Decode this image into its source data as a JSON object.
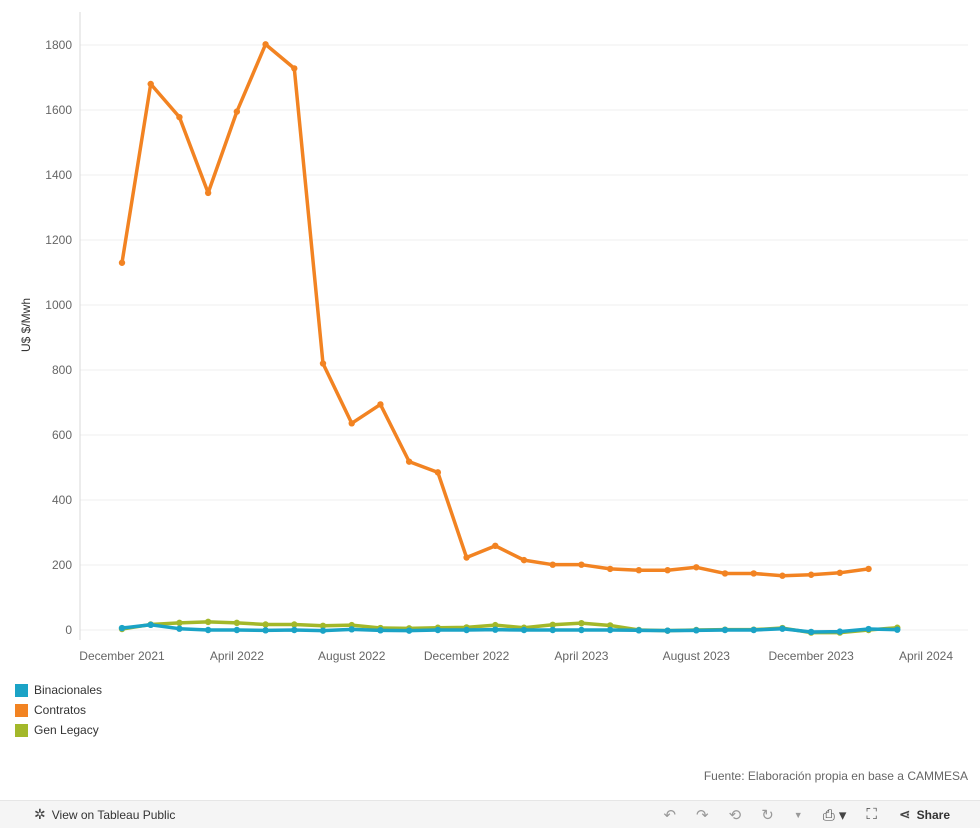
{
  "chart_data": {
    "type": "line",
    "ylabel": "U$ $/Mwh",
    "ylim": [
      -20,
      1900
    ],
    "yticks": [
      0,
      200,
      400,
      600,
      800,
      1000,
      1200,
      1400,
      1600,
      1800
    ],
    "x": [
      "2021-12",
      "2022-01",
      "2022-02",
      "2022-03",
      "2022-04",
      "2022-05",
      "2022-06",
      "2022-07",
      "2022-08",
      "2022-09",
      "2022-10",
      "2022-11",
      "2022-12",
      "2023-01",
      "2023-02",
      "2023-03",
      "2023-04",
      "2023-05",
      "2023-06",
      "2023-07",
      "2023-08",
      "2023-09",
      "2023-10",
      "2023-11",
      "2023-12",
      "2024-01",
      "2024-02",
      "2024-03",
      "2024-04"
    ],
    "xticks": [
      {
        "x": "2021-12",
        "label": "December 2021"
      },
      {
        "x": "2022-04",
        "label": "April 2022"
      },
      {
        "x": "2022-08",
        "label": "August 2022"
      },
      {
        "x": "2022-12",
        "label": "December 2022"
      },
      {
        "x": "2023-04",
        "label": "April 2023"
      },
      {
        "x": "2023-08",
        "label": "August 2023"
      },
      {
        "x": "2023-12",
        "label": "December 2023"
      },
      {
        "x": "2024-04",
        "label": "April 2024"
      }
    ],
    "grid": true,
    "legend": "bottom-left",
    "series": [
      {
        "name": "Gen Legacy",
        "color": "#a3b82a",
        "values": [
          3,
          17,
          22,
          25,
          22,
          17,
          17,
          13,
          15,
          6,
          5,
          7,
          8,
          15,
          7,
          16,
          21,
          14,
          0,
          -2,
          0,
          1,
          1,
          6,
          -8,
          -8,
          0,
          7,
          null
        ]
      },
      {
        "name": "Binacionales",
        "color": "#1ba3c6",
        "values": [
          6,
          16,
          4,
          0,
          0,
          -1,
          0,
          -2,
          2,
          -1,
          -2,
          0,
          0,
          1,
          0,
          0,
          0,
          0,
          -1,
          -2,
          -1,
          0,
          0,
          4,
          -6,
          -5,
          3,
          1,
          null
        ]
      },
      {
        "name": "Contratos",
        "color": "#f28322",
        "values": [
          1130,
          1680,
          1578,
          1345,
          1595,
          1802,
          1728,
          820,
          636,
          694,
          518,
          485,
          223,
          259,
          215,
          201,
          201,
          188,
          184,
          184,
          193,
          174,
          174,
          167,
          170,
          176,
          188,
          null,
          null
        ]
      }
    ],
    "legend_order": [
      "Binacionales",
      "Contratos",
      "Gen Legacy"
    ],
    "source_note": "Fuente: Elaboración propia en base a CAMMESA"
  },
  "legend_items": [
    {
      "label": "Binacionales",
      "color": "#1ba3c6"
    },
    {
      "label": "Contratos",
      "color": "#f28322"
    },
    {
      "label": "Gen Legacy",
      "color": "#a3b82a"
    }
  ],
  "toolbar": {
    "view_label": "View on Tableau Public",
    "share_label": "Share"
  }
}
